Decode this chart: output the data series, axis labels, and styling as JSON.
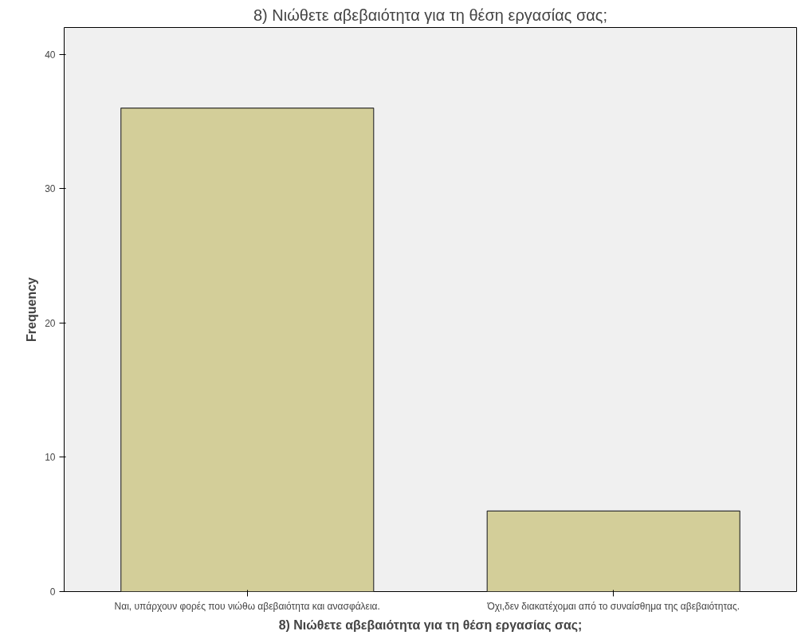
{
  "chart_data": {
    "type": "bar",
    "title": "8) Νιώθετε αβεβαιότητα για τη θέση εργασίας σας;",
    "xlabel": "8) Νιώθετε αβεβαιότητα για τη θέση εργασίας σας;",
    "ylabel": "Frequency",
    "categories": [
      "Ναι, υπάρχουν φορές που νιώθω αβεβαιότητα και ανασφάλεια.",
      "Όχι,δεν διακατέχομαι από το συναίσθημα της αβεβαιότητας."
    ],
    "values": [
      36,
      6
    ],
    "color": "#d3ce99",
    "ylim": [
      0,
      42
    ],
    "yticks": [
      0,
      10,
      20,
      30,
      40
    ],
    "grid": false
  }
}
